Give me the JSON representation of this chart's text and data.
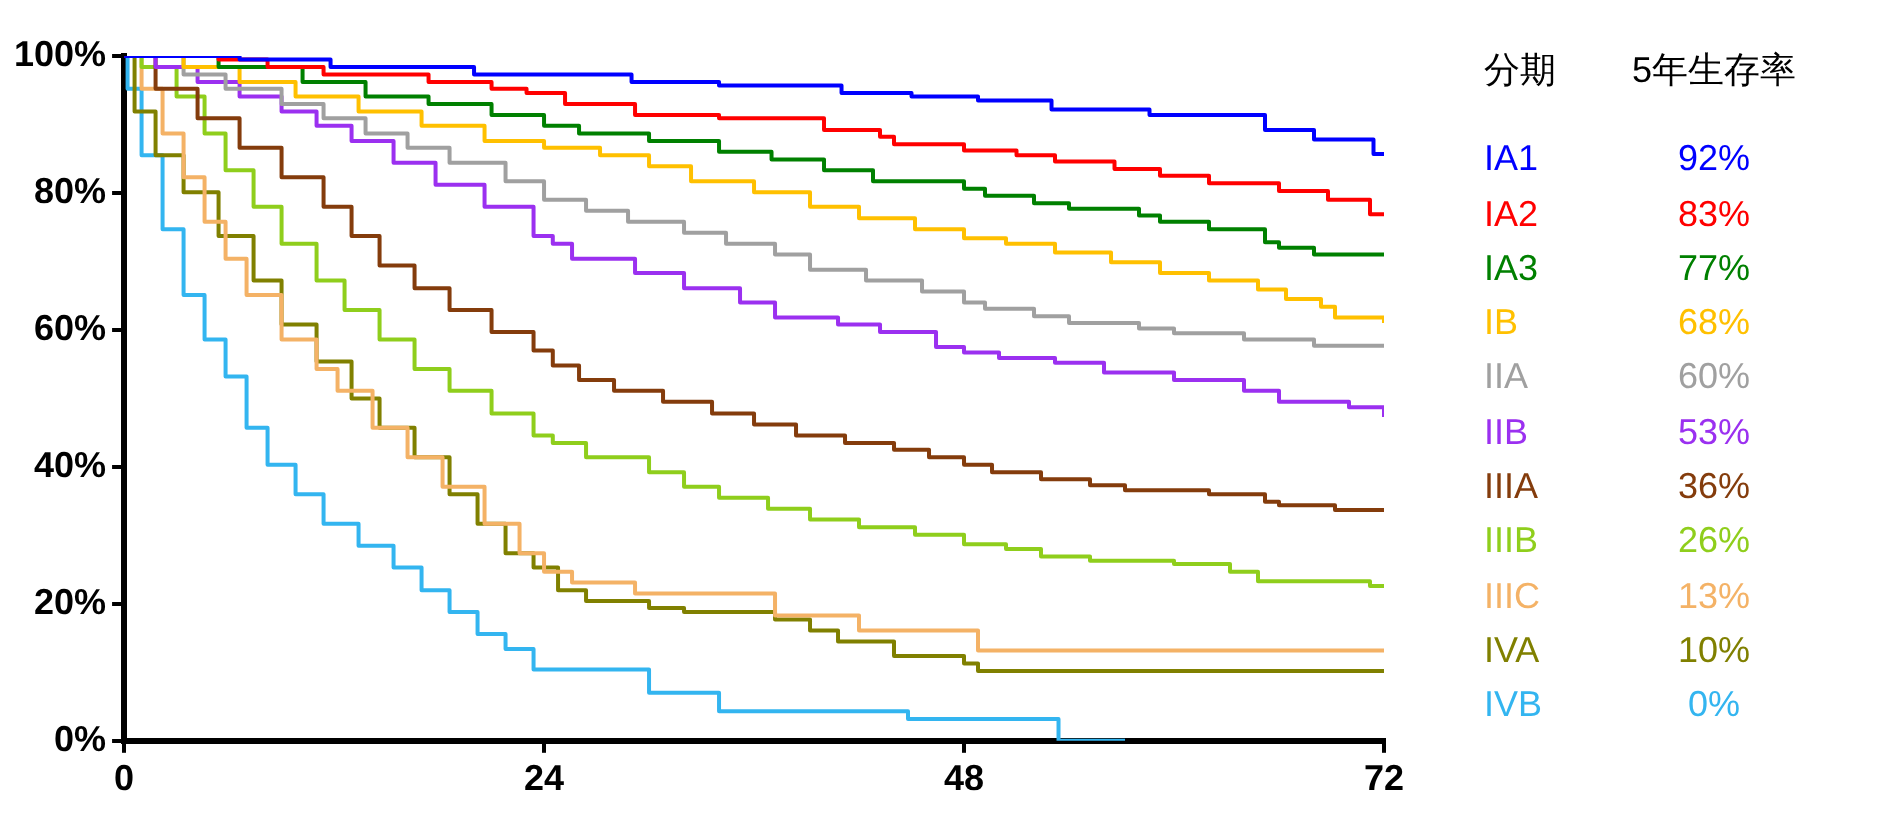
{
  "chart_data": {
    "type": "step",
    "xlim": [
      0,
      72
    ],
    "xticks": [
      0,
      24,
      48,
      72
    ],
    "ylim": [
      0,
      100
    ],
    "yticks": [
      {
        "value": 0,
        "label": "0%"
      },
      {
        "value": 20,
        "label": "20%"
      },
      {
        "value": 40,
        "label": "40%"
      },
      {
        "value": 60,
        "label": "60%"
      },
      {
        "value": 80,
        "label": "80%"
      },
      {
        "value": 100,
        "label": "100%"
      }
    ],
    "grid": false,
    "legend": "right",
    "legend_title": "分期",
    "annotations": [
      "5年生存率",
      "92%",
      "83%",
      "77%",
      "68%",
      "60%",
      "53%",
      "36%",
      "26%",
      "13%",
      "10%",
      "0%"
    ],
    "series": [
      {
        "name": "IA1",
        "color": "#0000ff",
        "x": [
          0,
          6.6,
          11.8,
          20,
          29,
          34,
          41,
          45,
          48.8,
          53,
          58.6,
          65.2,
          68,
          71.4,
          72
        ],
        "values": [
          100,
          99.5,
          98.4,
          97.3,
          96.2,
          95.7,
          94.6,
          94.1,
          93.5,
          92.2,
          91.4,
          89.2,
          87.8,
          85.7,
          85.7
        ]
      },
      {
        "name": "IA2",
        "color": "#ff0000",
        "x": [
          0,
          5.4,
          8.2,
          11.4,
          17.4,
          21,
          23,
          25.2,
          29.2,
          34,
          40,
          43.2,
          44,
          48,
          51,
          53.2,
          56.6,
          59.2,
          62,
          66,
          68.8,
          71.2,
          72
        ],
        "values": [
          100,
          99.5,
          98.4,
          97.3,
          96.2,
          95.2,
          94.6,
          93,
          91.4,
          90.9,
          89.2,
          88.2,
          87.1,
          86.2,
          85.5,
          84.6,
          83.5,
          82.5,
          81.4,
          80.3,
          79,
          76.9,
          76.9
        ]
      },
      {
        "name": "IA3",
        "color": "#008000",
        "x": [
          0,
          5.4,
          10.2,
          13.8,
          17.4,
          21,
          24,
          26,
          30,
          34,
          37,
          40,
          42.8,
          48,
          49.2,
          52,
          54,
          58,
          59.2,
          62,
          65.2,
          66,
          68,
          72
        ],
        "values": [
          100,
          98.4,
          96.2,
          94.1,
          93,
          91.4,
          89.8,
          88.7,
          87.6,
          86,
          84.9,
          83.3,
          81.7,
          80.6,
          79.6,
          78.5,
          77.7,
          76.7,
          75.8,
          74.7,
          72.8,
          72,
          71,
          71
        ]
      },
      {
        "name": "IB",
        "color": "#ffc000",
        "x": [
          0,
          3.4,
          6.6,
          9.8,
          13.4,
          17,
          20.6,
          24,
          27.2,
          30,
          32.4,
          36,
          39.2,
          42,
          45.2,
          48,
          50.4,
          53.2,
          56.4,
          59.2,
          62,
          64.8,
          66.4,
          68.4,
          69.2,
          72
        ],
        "values": [
          100,
          98.4,
          96.2,
          94.1,
          91.9,
          89.8,
          87.6,
          86.6,
          85.5,
          83.9,
          81.7,
          80.1,
          78,
          76.3,
          74.7,
          73.4,
          72.6,
          71.3,
          69.9,
          68.3,
          67.2,
          65.9,
          64.5,
          63.4,
          61.8,
          61
        ]
      },
      {
        "name": "IIA",
        "color": "#a0a0a0",
        "x": [
          0,
          3.4,
          5.8,
          9,
          11.4,
          13.8,
          16.2,
          18.6,
          21.8,
          24,
          26.4,
          28.8,
          32,
          34.4,
          37.2,
          39.2,
          42.4,
          45.6,
          48,
          49.2,
          52,
          54,
          58,
          60,
          64,
          68,
          72
        ],
        "values": [
          100,
          97.3,
          95.2,
          93,
          90.9,
          88.7,
          86.6,
          84.4,
          81.7,
          79,
          77.4,
          75.8,
          74.2,
          72.6,
          71,
          68.8,
          67.2,
          65.6,
          64,
          63.1,
          62,
          61,
          60.2,
          59.5,
          58.6,
          57.7,
          57.5
        ]
      },
      {
        "name": "IIB",
        "color": "#9b30f0",
        "x": [
          0,
          1.8,
          4.2,
          6.6,
          9,
          11,
          13,
          15.4,
          17.8,
          20.6,
          23.4,
          24.5,
          25.6,
          29.2,
          32,
          35.2,
          37.2,
          40.8,
          43.2,
          46.4,
          48,
          50,
          53.2,
          56,
          60,
          64,
          66,
          70,
          72
        ],
        "values": [
          100,
          98.4,
          96.2,
          94.1,
          91.9,
          89.8,
          87.6,
          84.4,
          81.2,
          78,
          73.7,
          72.6,
          70.4,
          68.3,
          66.1,
          64,
          61.8,
          60.8,
          59.7,
          57.5,
          56.7,
          55.9,
          55.2,
          53.8,
          52.7,
          51.1,
          49.5,
          48.7,
          47.3
        ]
      },
      {
        "name": "IIIA",
        "color": "#843c0c",
        "x": [
          0,
          1.8,
          4.2,
          6.6,
          9,
          11.4,
          13,
          14.6,
          16.6,
          18.6,
          21,
          23.4,
          24.5,
          26,
          28,
          30.8,
          33.6,
          36,
          38.4,
          41.2,
          44,
          46,
          48,
          49.6,
          52.4,
          55.2,
          57.2,
          62,
          65.2,
          66,
          69.2,
          72
        ],
        "values": [
          100,
          95.2,
          90.9,
          86.6,
          82.3,
          78,
          73.7,
          69.4,
          66.1,
          62.9,
          59.7,
          57,
          54.8,
          52.7,
          51.1,
          49.5,
          47.8,
          46.2,
          44.6,
          43.5,
          42.5,
          41.4,
          40.3,
          39.2,
          38.2,
          37.3,
          36.6,
          36,
          34.9,
          34.4,
          33.7,
          33.7
        ]
      },
      {
        "name": "IIIB",
        "color": "#8fce1c",
        "x": [
          0,
          1,
          3,
          4.6,
          5.8,
          7.4,
          9,
          11,
          12.6,
          14.6,
          16.6,
          18.6,
          21,
          23.4,
          24.5,
          26.4,
          30,
          32,
          34,
          36.8,
          39.2,
          42,
          45.2,
          48,
          50.4,
          52.4,
          55.2,
          60,
          63.2,
          64.8,
          71.2,
          72
        ],
        "values": [
          100,
          98.4,
          94.1,
          88.7,
          83.3,
          78,
          72.6,
          67.2,
          62.9,
          58.6,
          54.3,
          51.1,
          47.8,
          44.6,
          43.5,
          41.4,
          39.2,
          37.1,
          35.5,
          33.9,
          32.3,
          31.2,
          30.1,
          28.7,
          28,
          26.9,
          26.3,
          25.8,
          24.7,
          23.3,
          22.6,
          22.6
        ]
      },
      {
        "name": "IIIC",
        "color": "#f4b266",
        "x": [
          0,
          1,
          2.2,
          3.4,
          4.6,
          5.8,
          7,
          9,
          11,
          12.2,
          14.2,
          16.2,
          18.2,
          20.6,
          22.6,
          24,
          25.6,
          29.2,
          37.2,
          42,
          48.8,
          72
        ],
        "values": [
          100,
          95.2,
          88.7,
          82.3,
          75.8,
          70.4,
          65.1,
          58.6,
          54.3,
          51.1,
          45.7,
          41.4,
          37.1,
          31.7,
          27.4,
          24.7,
          23.1,
          21.5,
          18.3,
          16.1,
          13.2,
          13.2
        ]
      },
      {
        "name": "IVA",
        "color": "#808000",
        "x": [
          0,
          0.6,
          1.8,
          3.4,
          5.4,
          7.4,
          9,
          11,
          13,
          14.6,
          16.6,
          18.6,
          20.2,
          21.8,
          23.4,
          24.8,
          26.4,
          30,
          32,
          37.2,
          39.2,
          40.8,
          44,
          48,
          48.8,
          72
        ],
        "values": [
          100,
          91.9,
          85.5,
          80.1,
          73.7,
          67.2,
          60.8,
          55.4,
          50,
          45.7,
          41.4,
          36,
          31.7,
          27.4,
          25.3,
          22,
          20.4,
          19.4,
          18.8,
          17.7,
          16.1,
          14.5,
          12.4,
          11.3,
          10.2,
          10.2
        ]
      },
      {
        "name": "IVB",
        "color": "#33b5f0",
        "x": [
          0,
          0.2,
          1,
          2.2,
          3.4,
          4.6,
          5.8,
          7,
          8.2,
          9.8,
          11.4,
          13.4,
          15.4,
          17,
          18.6,
          20.2,
          21.8,
          23.4,
          30,
          34,
          44.8,
          53.4,
          57.2
        ],
        "values": [
          100,
          95.2,
          85.5,
          74.7,
          65.1,
          58.6,
          53.2,
          45.7,
          40.3,
          36,
          31.7,
          28.5,
          25.3,
          22,
          18.8,
          15.6,
          13.4,
          10.4,
          7,
          4.3,
          3.2,
          0,
          0
        ]
      }
    ]
  }
}
